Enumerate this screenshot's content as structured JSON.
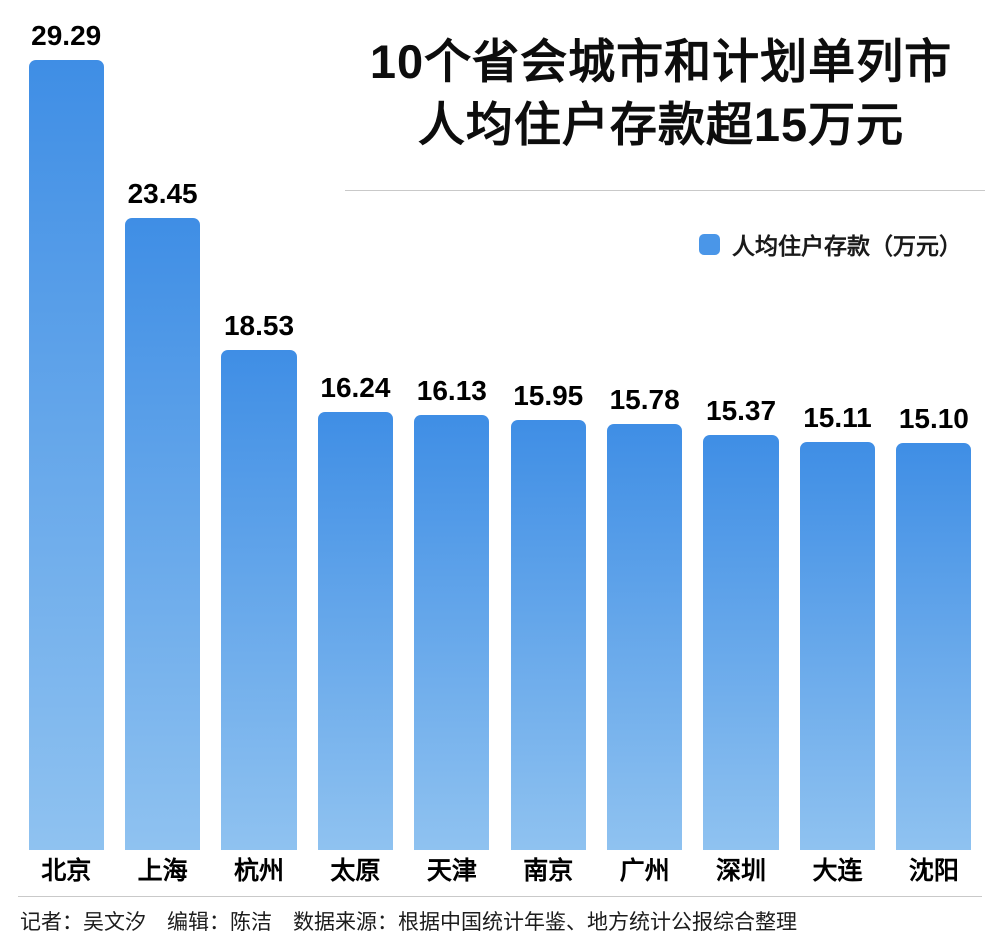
{
  "title": {
    "line1": "10个省会城市和计划单列市",
    "line2": "人均住户存款超15万元"
  },
  "legend": {
    "label": "人均住户存款（万元）",
    "color": "#4a96e8"
  },
  "chart_data": {
    "type": "bar",
    "title": "10个省会城市和计划单列市人均住户存款超15万元",
    "categories": [
      "北京",
      "上海",
      "杭州",
      "太原",
      "天津",
      "南京",
      "广州",
      "深圳",
      "大连",
      "沈阳"
    ],
    "values": [
      29.29,
      23.45,
      18.53,
      16.24,
      16.13,
      15.95,
      15.78,
      15.37,
      15.11,
      15.1
    ],
    "legend": [
      "人均住户存款（万元）"
    ],
    "xlabel": "",
    "ylabel": "人均住户存款（万元）",
    "ylim": [
      0,
      30
    ],
    "grid": false,
    "legend_position": "top-right",
    "value_label_decimals": 2,
    "bar_color_top": "#3f8ee5",
    "bar_color_bottom": "#8fc2f0"
  },
  "footer": {
    "text": "记者：吴文汐　编辑：陈洁　数据来源：根据中国统计年鉴、地方统计公报综合整理"
  }
}
